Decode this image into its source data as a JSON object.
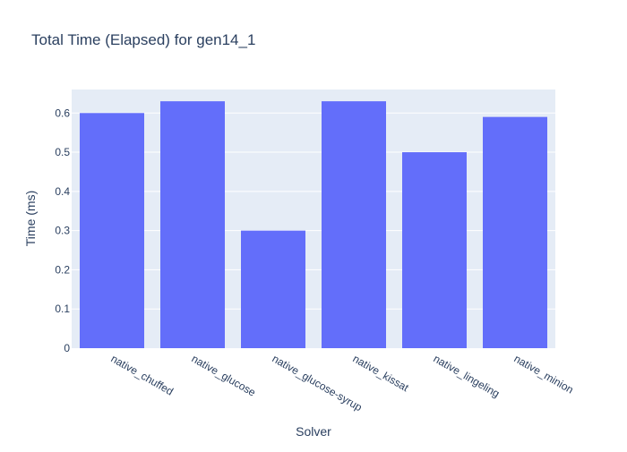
{
  "chart_data": {
    "type": "bar",
    "title": "Total Time (Elapsed) for gen14_1",
    "xlabel": "Solver",
    "ylabel": "Time (ms)",
    "categories": [
      "native_chuffed",
      "native_glucose",
      "native_glucose-syrup",
      "native_kissat",
      "native_lingeling",
      "native_minion"
    ],
    "values": [
      0.6,
      0.63,
      0.3,
      0.63,
      0.5,
      0.59
    ],
    "ylim": [
      0,
      0.66
    ],
    "y_ticks": [
      0,
      0.1,
      0.2,
      0.3,
      0.4,
      0.5,
      0.6
    ],
    "y_tick_labels": [
      "0",
      "0.1",
      "0.2",
      "0.3",
      "0.4",
      "0.5",
      "0.6"
    ],
    "grid": true,
    "legend": "none",
    "colors": {
      "bar": "#636efa",
      "plot_bg": "#e5ecf6",
      "grid": "#ffffff",
      "text": "#2a3f5f"
    }
  }
}
